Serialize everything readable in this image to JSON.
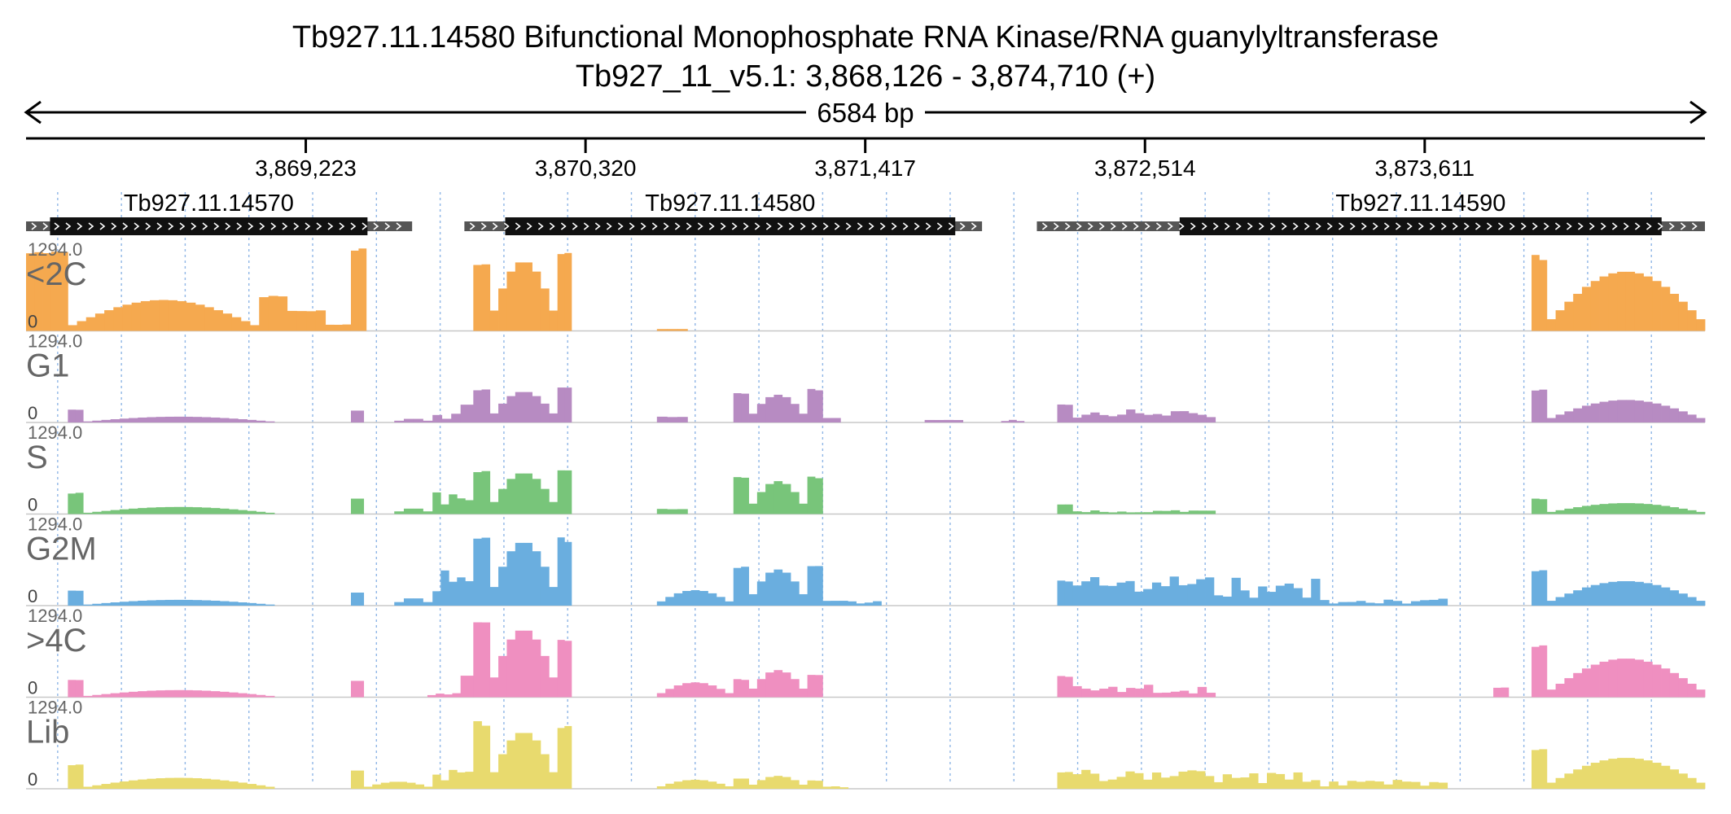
{
  "header": {
    "title": "Tb927.11.14580  Bifunctional Monophosphate RNA Kinase/RNA guanylyltransferase",
    "subtitle": "Tb927_11_v5.1: 3,868,126 - 3,874,710 (+)"
  },
  "chart_data": {
    "type": "area",
    "chromosome": "Tb927_11_v5.1",
    "region": {
      "start": 3868126,
      "end": 3874710,
      "strand": "+"
    },
    "span_label": "6584 bp",
    "ticks": [
      {
        "pos": 3869223,
        "label": "3,869,223"
      },
      {
        "pos": 3870320,
        "label": "3,870,320"
      },
      {
        "pos": 3871417,
        "label": "3,871,417"
      },
      {
        "pos": 3872514,
        "label": "3,872,514"
      },
      {
        "pos": 3873611,
        "label": "3,873,611"
      }
    ],
    "genes": [
      {
        "name": "Tb927.11.14570",
        "utr5_start": 3868126,
        "cds_start": 3868220,
        "cds_end": 3869465,
        "utr3_end": 3869640
      },
      {
        "name": "Tb927.11.14580",
        "utr5_start": 3869845,
        "cds_start": 3870005,
        "cds_end": 3871770,
        "utr3_end": 3871875
      },
      {
        "name": "Tb927.11.14590",
        "utr5_start": 3872090,
        "cds_start": 3872650,
        "cds_end": 3874540,
        "utr3_end": 3874710
      }
    ],
    "y_max": 1294.0,
    "y_max_label": "1294.0",
    "y_min_label": "0",
    "bin_size_bp": 35,
    "series": [
      {
        "name": "<2C",
        "color": "#f5a94f",
        "blocks": [
          {
            "start": 3868126,
            "end": 3868290,
            "max": 1294,
            "mode": "flat"
          },
          {
            "start": 3868290,
            "end": 3869040,
            "max": 480,
            "mode": "hump"
          },
          {
            "start": 3869040,
            "end": 3869150,
            "max": 560,
            "mode": "flat"
          },
          {
            "start": 3869150,
            "end": 3869300,
            "max": 320,
            "mode": "flat"
          },
          {
            "start": 3869300,
            "end": 3869400,
            "max": 100,
            "mode": "flat"
          },
          {
            "start": 3869400,
            "end": 3869460,
            "max": 1294,
            "mode": "flat"
          },
          {
            "start": 3869880,
            "end": 3869945,
            "max": 1050,
            "mode": "flat"
          },
          {
            "start": 3869945,
            "end": 3870210,
            "max": 1080,
            "mode": "hump"
          },
          {
            "start": 3870210,
            "end": 3870265,
            "max": 1250,
            "mode": "flat"
          },
          {
            "start": 3870600,
            "end": 3870720,
            "max": 30,
            "mode": "flat"
          },
          {
            "start": 3874030,
            "end": 3874090,
            "max": 1180,
            "mode": "flat"
          },
          {
            "start": 3874090,
            "end": 3874710,
            "max": 920,
            "mode": "hump"
          }
        ]
      },
      {
        "name": "G1",
        "color": "#b78bc2",
        "blocks": [
          {
            "start": 3868290,
            "end": 3868350,
            "max": 200,
            "mode": "flat"
          },
          {
            "start": 3868350,
            "end": 3869100,
            "max": 90,
            "mode": "hump"
          },
          {
            "start": 3869400,
            "end": 3869450,
            "max": 190,
            "mode": "flat"
          },
          {
            "start": 3869570,
            "end": 3869720,
            "max": 60,
            "mode": "hump"
          },
          {
            "start": 3869720,
            "end": 3869830,
            "max": 170,
            "mode": "ragged"
          },
          {
            "start": 3869830,
            "end": 3869880,
            "max": 280,
            "mode": "ragged"
          },
          {
            "start": 3869880,
            "end": 3869945,
            "max": 530,
            "mode": "flat"
          },
          {
            "start": 3869945,
            "end": 3870210,
            "max": 480,
            "mode": "hump"
          },
          {
            "start": 3870210,
            "end": 3870265,
            "max": 560,
            "mode": "flat"
          },
          {
            "start": 3870600,
            "end": 3870720,
            "max": 90,
            "mode": "flat"
          },
          {
            "start": 3870900,
            "end": 3870960,
            "max": 460,
            "mode": "flat"
          },
          {
            "start": 3870960,
            "end": 3871190,
            "max": 430,
            "mode": "hump"
          },
          {
            "start": 3871190,
            "end": 3871250,
            "max": 520,
            "mode": "flat"
          },
          {
            "start": 3871250,
            "end": 3871320,
            "max": 70,
            "mode": "flat"
          },
          {
            "start": 3871650,
            "end": 3871800,
            "max": 40,
            "mode": "flat"
          },
          {
            "start": 3871950,
            "end": 3872040,
            "max": 40,
            "mode": "hump"
          },
          {
            "start": 3872170,
            "end": 3872230,
            "max": 290,
            "mode": "flat"
          },
          {
            "start": 3872230,
            "end": 3872790,
            "max": 210,
            "mode": "ragged"
          },
          {
            "start": 3874030,
            "end": 3874090,
            "max": 520,
            "mode": "flat"
          },
          {
            "start": 3874090,
            "end": 3874710,
            "max": 350,
            "mode": "hump"
          }
        ]
      },
      {
        "name": "S",
        "color": "#78c57a",
        "blocks": [
          {
            "start": 3868290,
            "end": 3868350,
            "max": 340,
            "mode": "flat"
          },
          {
            "start": 3868350,
            "end": 3869100,
            "max": 110,
            "mode": "hump"
          },
          {
            "start": 3869400,
            "end": 3869450,
            "max": 250,
            "mode": "flat"
          },
          {
            "start": 3869570,
            "end": 3869720,
            "max": 90,
            "mode": "hump"
          },
          {
            "start": 3869720,
            "end": 3869880,
            "max": 480,
            "mode": "ragged"
          },
          {
            "start": 3869880,
            "end": 3869945,
            "max": 690,
            "mode": "flat"
          },
          {
            "start": 3869945,
            "end": 3870210,
            "max": 640,
            "mode": "hump"
          },
          {
            "start": 3870210,
            "end": 3870265,
            "max": 700,
            "mode": "flat"
          },
          {
            "start": 3870600,
            "end": 3870720,
            "max": 80,
            "mode": "flat"
          },
          {
            "start": 3870900,
            "end": 3870960,
            "max": 580,
            "mode": "flat"
          },
          {
            "start": 3870960,
            "end": 3871190,
            "max": 510,
            "mode": "hump"
          },
          {
            "start": 3871190,
            "end": 3871250,
            "max": 580,
            "mode": "flat"
          },
          {
            "start": 3872170,
            "end": 3872230,
            "max": 150,
            "mode": "flat"
          },
          {
            "start": 3872230,
            "end": 3872790,
            "max": 60,
            "mode": "ragged"
          },
          {
            "start": 3874030,
            "end": 3874090,
            "max": 240,
            "mode": "flat"
          },
          {
            "start": 3874090,
            "end": 3874710,
            "max": 170,
            "mode": "hump"
          }
        ]
      },
      {
        "name": "G2M",
        "color": "#6aaedf",
        "blocks": [
          {
            "start": 3868290,
            "end": 3868350,
            "max": 240,
            "mode": "flat"
          },
          {
            "start": 3868350,
            "end": 3869100,
            "max": 90,
            "mode": "hump"
          },
          {
            "start": 3869400,
            "end": 3869450,
            "max": 210,
            "mode": "flat"
          },
          {
            "start": 3869570,
            "end": 3869720,
            "max": 120,
            "mode": "hump"
          },
          {
            "start": 3869720,
            "end": 3869880,
            "max": 620,
            "mode": "ragged"
          },
          {
            "start": 3869880,
            "end": 3869945,
            "max": 1090,
            "mode": "flat"
          },
          {
            "start": 3869945,
            "end": 3870210,
            "max": 990,
            "mode": "hump"
          },
          {
            "start": 3870210,
            "end": 3870265,
            "max": 1060,
            "mode": "flat"
          },
          {
            "start": 3870600,
            "end": 3870900,
            "max": 240,
            "mode": "hump"
          },
          {
            "start": 3870900,
            "end": 3870960,
            "max": 620,
            "mode": "flat"
          },
          {
            "start": 3870960,
            "end": 3871190,
            "max": 560,
            "mode": "hump"
          },
          {
            "start": 3871190,
            "end": 3871250,
            "max": 620,
            "mode": "flat"
          },
          {
            "start": 3871250,
            "end": 3871480,
            "max": 80,
            "mode": "ragged"
          },
          {
            "start": 3872170,
            "end": 3872230,
            "max": 390,
            "mode": "flat"
          },
          {
            "start": 3872230,
            "end": 3873200,
            "max": 460,
            "mode": "ragged"
          },
          {
            "start": 3873200,
            "end": 3873700,
            "max": 110,
            "mode": "ragged"
          },
          {
            "start": 3874030,
            "end": 3874090,
            "max": 560,
            "mode": "flat"
          },
          {
            "start": 3874090,
            "end": 3874710,
            "max": 380,
            "mode": "hump"
          }
        ]
      },
      {
        "name": ">4C",
        "color": "#ef8fc0",
        "blocks": [
          {
            "start": 3868290,
            "end": 3868350,
            "max": 280,
            "mode": "flat"
          },
          {
            "start": 3868350,
            "end": 3869100,
            "max": 110,
            "mode": "hump"
          },
          {
            "start": 3869400,
            "end": 3869450,
            "max": 260,
            "mode": "flat"
          },
          {
            "start": 3869700,
            "end": 3869830,
            "max": 80,
            "mode": "ragged"
          },
          {
            "start": 3869830,
            "end": 3869880,
            "max": 350,
            "mode": "flat"
          },
          {
            "start": 3869880,
            "end": 3869945,
            "max": 1200,
            "mode": "flat"
          },
          {
            "start": 3869945,
            "end": 3870210,
            "max": 1050,
            "mode": "hump"
          },
          {
            "start": 3870210,
            "end": 3870265,
            "max": 900,
            "mode": "flat"
          },
          {
            "start": 3870600,
            "end": 3870900,
            "max": 230,
            "mode": "hump"
          },
          {
            "start": 3870900,
            "end": 3870960,
            "max": 280,
            "mode": "flat"
          },
          {
            "start": 3870960,
            "end": 3871190,
            "max": 420,
            "mode": "hump"
          },
          {
            "start": 3871190,
            "end": 3871250,
            "max": 360,
            "mode": "flat"
          },
          {
            "start": 3872170,
            "end": 3872230,
            "max": 330,
            "mode": "flat"
          },
          {
            "start": 3872230,
            "end": 3872790,
            "max": 200,
            "mode": "ragged"
          },
          {
            "start": 3873880,
            "end": 3873940,
            "max": 150,
            "mode": "flat"
          },
          {
            "start": 3874030,
            "end": 3874090,
            "max": 820,
            "mode": "flat"
          },
          {
            "start": 3874090,
            "end": 3874710,
            "max": 600,
            "mode": "hump"
          }
        ]
      },
      {
        "name": "Lib",
        "color": "#e8da6e",
        "blocks": [
          {
            "start": 3868290,
            "end": 3868350,
            "max": 380,
            "mode": "flat"
          },
          {
            "start": 3868350,
            "end": 3869100,
            "max": 170,
            "mode": "hump"
          },
          {
            "start": 3869400,
            "end": 3869450,
            "max": 300,
            "mode": "flat"
          },
          {
            "start": 3869450,
            "end": 3869720,
            "max": 110,
            "mode": "hump"
          },
          {
            "start": 3869720,
            "end": 3869880,
            "max": 440,
            "mode": "ragged"
          },
          {
            "start": 3869880,
            "end": 3869945,
            "max": 1050,
            "mode": "flat"
          },
          {
            "start": 3869945,
            "end": 3870210,
            "max": 880,
            "mode": "hump"
          },
          {
            "start": 3870210,
            "end": 3870265,
            "max": 1000,
            "mode": "flat"
          },
          {
            "start": 3870600,
            "end": 3870900,
            "max": 140,
            "mode": "hump"
          },
          {
            "start": 3870900,
            "end": 3870960,
            "max": 160,
            "mode": "flat"
          },
          {
            "start": 3870960,
            "end": 3871190,
            "max": 200,
            "mode": "hump"
          },
          {
            "start": 3871190,
            "end": 3871250,
            "max": 130,
            "mode": "flat"
          },
          {
            "start": 3871250,
            "end": 3871350,
            "max": 40,
            "mode": "ragged"
          },
          {
            "start": 3872170,
            "end": 3872230,
            "max": 260,
            "mode": "flat"
          },
          {
            "start": 3872230,
            "end": 3873200,
            "max": 300,
            "mode": "ragged"
          },
          {
            "start": 3873200,
            "end": 3873700,
            "max": 140,
            "mode": "ragged"
          },
          {
            "start": 3874030,
            "end": 3874090,
            "max": 620,
            "mode": "flat"
          },
          {
            "start": 3874090,
            "end": 3874710,
            "max": 480,
            "mode": "hump"
          }
        ]
      }
    ]
  }
}
